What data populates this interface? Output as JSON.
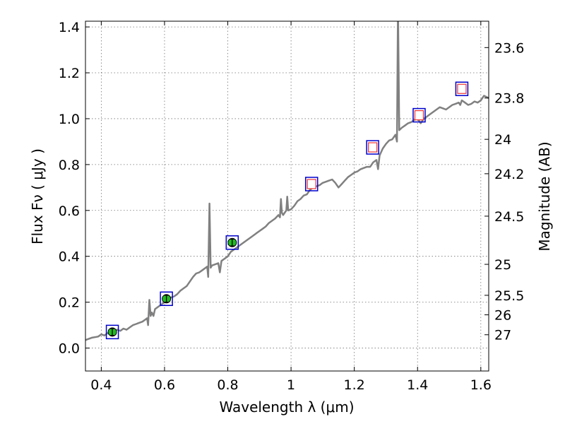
{
  "chart_data": {
    "type": "line",
    "title": "",
    "xlabel": "Wavelength  λ (μm)",
    "ylabel": "Flux  Fν  ( μJy )",
    "ylabel_right": "Magnitude (AB)",
    "xlim": [
      0.35,
      1.625
    ],
    "ylim": [
      -0.1,
      1.425
    ],
    "x_ticks": [
      0.4,
      0.6,
      0.8,
      1.0,
      1.2,
      1.4,
      1.6
    ],
    "x_tick_labels": [
      "0.4",
      "0.6",
      "0.8",
      "1",
      "1.2",
      "1.4",
      "1.6"
    ],
    "y_ticks": [
      0.0,
      0.2,
      0.4,
      0.6,
      0.8,
      1.0,
      1.2,
      1.4
    ],
    "y_tick_labels": [
      "0.0",
      "0.2",
      "0.4",
      "0.6",
      "0.8",
      "1.0",
      "1.2",
      "1.4"
    ],
    "right_ticks": [
      {
        "label": "23.6",
        "flux": 1.31
      },
      {
        "label": "23.8",
        "flux": 1.09
      },
      {
        "label": "24",
        "flux": 0.91
      },
      {
        "label": "24.2",
        "flux": 0.76
      },
      {
        "label": "24.5",
        "flux": 0.575
      },
      {
        "label": "25",
        "flux": 0.365
      },
      {
        "label": "25.5",
        "flux": 0.23
      },
      {
        "label": "26",
        "flux": 0.145
      },
      {
        "label": "27",
        "flux": 0.058
      }
    ],
    "grid": true,
    "line_color": "#808080",
    "spectrum": [
      [
        0.35,
        0.035
      ],
      [
        0.37,
        0.045
      ],
      [
        0.39,
        0.05
      ],
      [
        0.4,
        0.06
      ],
      [
        0.41,
        0.055
      ],
      [
        0.42,
        0.065
      ],
      [
        0.43,
        0.07
      ],
      [
        0.44,
        0.075
      ],
      [
        0.45,
        0.08
      ],
      [
        0.46,
        0.075
      ],
      [
        0.47,
        0.085
      ],
      [
        0.48,
        0.08
      ],
      [
        0.49,
        0.09
      ],
      [
        0.5,
        0.1
      ],
      [
        0.51,
        0.105
      ],
      [
        0.52,
        0.11
      ],
      [
        0.53,
        0.115
      ],
      [
        0.54,
        0.125
      ],
      [
        0.545,
        0.13
      ],
      [
        0.548,
        0.1
      ],
      [
        0.552,
        0.21
      ],
      [
        0.556,
        0.14
      ],
      [
        0.56,
        0.155
      ],
      [
        0.565,
        0.14
      ],
      [
        0.57,
        0.17
      ],
      [
        0.58,
        0.18
      ],
      [
        0.59,
        0.19
      ],
      [
        0.6,
        0.2
      ],
      [
        0.61,
        0.21
      ],
      [
        0.62,
        0.22
      ],
      [
        0.63,
        0.225
      ],
      [
        0.64,
        0.235
      ],
      [
        0.65,
        0.25
      ],
      [
        0.66,
        0.26
      ],
      [
        0.67,
        0.27
      ],
      [
        0.68,
        0.29
      ],
      [
        0.69,
        0.31
      ],
      [
        0.7,
        0.325
      ],
      [
        0.71,
        0.33
      ],
      [
        0.72,
        0.34
      ],
      [
        0.73,
        0.35
      ],
      [
        0.735,
        0.355
      ],
      [
        0.738,
        0.31
      ],
      [
        0.742,
        0.63
      ],
      [
        0.746,
        0.35
      ],
      [
        0.75,
        0.36
      ],
      [
        0.76,
        0.365
      ],
      [
        0.77,
        0.37
      ],
      [
        0.775,
        0.33
      ],
      [
        0.78,
        0.38
      ],
      [
        0.79,
        0.39
      ],
      [
        0.8,
        0.4
      ],
      [
        0.81,
        0.42
      ],
      [
        0.82,
        0.43
      ],
      [
        0.83,
        0.44
      ],
      [
        0.84,
        0.45
      ],
      [
        0.85,
        0.46
      ],
      [
        0.86,
        0.47
      ],
      [
        0.87,
        0.48
      ],
      [
        0.88,
        0.49
      ],
      [
        0.89,
        0.5
      ],
      [
        0.9,
        0.51
      ],
      [
        0.91,
        0.52
      ],
      [
        0.92,
        0.53
      ],
      [
        0.93,
        0.545
      ],
      [
        0.94,
        0.555
      ],
      [
        0.95,
        0.565
      ],
      [
        0.96,
        0.58
      ],
      [
        0.965,
        0.57
      ],
      [
        0.968,
        0.65
      ],
      [
        0.971,
        0.59
      ],
      [
        0.975,
        0.58
      ],
      [
        0.98,
        0.59
      ],
      [
        0.985,
        0.6
      ],
      [
        0.988,
        0.66
      ],
      [
        0.991,
        0.6
      ],
      [
        1.0,
        0.605
      ],
      [
        1.01,
        0.62
      ],
      [
        1.02,
        0.64
      ],
      [
        1.03,
        0.65
      ],
      [
        1.04,
        0.665
      ],
      [
        1.05,
        0.67
      ],
      [
        1.06,
        0.69
      ],
      [
        1.07,
        0.7
      ],
      [
        1.08,
        0.705
      ],
      [
        1.09,
        0.71
      ],
      [
        1.1,
        0.72
      ],
      [
        1.11,
        0.725
      ],
      [
        1.12,
        0.73
      ],
      [
        1.13,
        0.735
      ],
      [
        1.14,
        0.72
      ],
      [
        1.15,
        0.7
      ],
      [
        1.16,
        0.715
      ],
      [
        1.17,
        0.73
      ],
      [
        1.18,
        0.745
      ],
      [
        1.19,
        0.755
      ],
      [
        1.2,
        0.765
      ],
      [
        1.21,
        0.77
      ],
      [
        1.22,
        0.78
      ],
      [
        1.23,
        0.785
      ],
      [
        1.24,
        0.79
      ],
      [
        1.25,
        0.79
      ],
      [
        1.26,
        0.81
      ],
      [
        1.27,
        0.82
      ],
      [
        1.275,
        0.78
      ],
      [
        1.28,
        0.84
      ],
      [
        1.29,
        0.87
      ],
      [
        1.3,
        0.89
      ],
      [
        1.31,
        0.905
      ],
      [
        1.32,
        0.91
      ],
      [
        1.33,
        0.93
      ],
      [
        1.335,
        0.9
      ],
      [
        1.338,
        1.5
      ],
      [
        1.342,
        0.95
      ],
      [
        1.35,
        0.96
      ],
      [
        1.36,
        0.97
      ],
      [
        1.37,
        0.98
      ],
      [
        1.38,
        0.985
      ],
      [
        1.39,
        0.995
      ],
      [
        1.4,
        1.0
      ],
      [
        1.41,
        0.98
      ],
      [
        1.42,
        1.0
      ],
      [
        1.43,
        1.01
      ],
      [
        1.44,
        1.02
      ],
      [
        1.45,
        1.03
      ],
      [
        1.46,
        1.04
      ],
      [
        1.47,
        1.05
      ],
      [
        1.48,
        1.045
      ],
      [
        1.49,
        1.04
      ],
      [
        1.5,
        1.05
      ],
      [
        1.51,
        1.06
      ],
      [
        1.52,
        1.065
      ],
      [
        1.53,
        1.07
      ],
      [
        1.535,
        1.06
      ],
      [
        1.54,
        1.08
      ],
      [
        1.55,
        1.07
      ],
      [
        1.56,
        1.06
      ],
      [
        1.57,
        1.065
      ],
      [
        1.58,
        1.075
      ],
      [
        1.59,
        1.07
      ],
      [
        1.6,
        1.08
      ],
      [
        1.61,
        1.1
      ],
      [
        1.625,
        1.09
      ]
    ],
    "detections": [
      {
        "x": 0.435,
        "y": 0.07,
        "err": 0.015
      },
      {
        "x": 0.606,
        "y": 0.215,
        "err": 0.015
      },
      {
        "x": 0.814,
        "y": 0.46,
        "err": 0.015
      }
    ],
    "model_points": [
      {
        "x": 1.065,
        "y": 0.715
      },
      {
        "x": 1.258,
        "y": 0.875
      },
      {
        "x": 1.405,
        "y": 1.015
      },
      {
        "x": 1.54,
        "y": 1.13
      }
    ],
    "colors": {
      "detection_fill": "#22bb22",
      "box_outline": "#0000cc",
      "model_marker": "#ee3333"
    }
  }
}
